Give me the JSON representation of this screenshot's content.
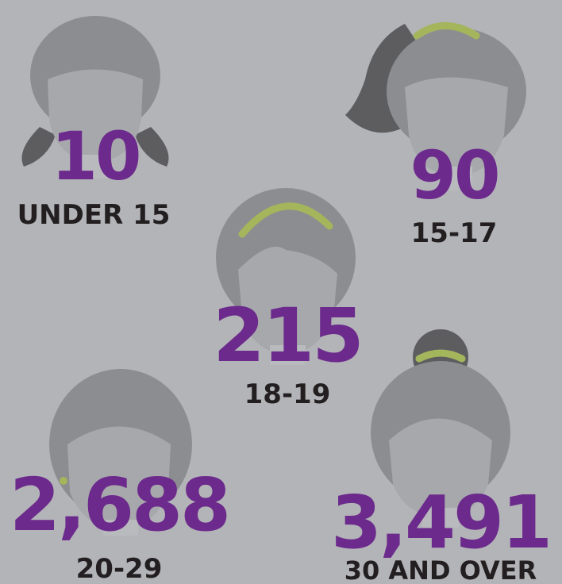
{
  "groups": [
    {
      "value": "10",
      "label": "UNDER 15"
    },
    {
      "value": "90",
      "label": "15-17"
    },
    {
      "value": "215",
      "label": "18-19"
    },
    {
      "value": "2,688",
      "label": "20-29"
    },
    {
      "value": "3,491",
      "label": "30 AND OVER"
    }
  ]
}
